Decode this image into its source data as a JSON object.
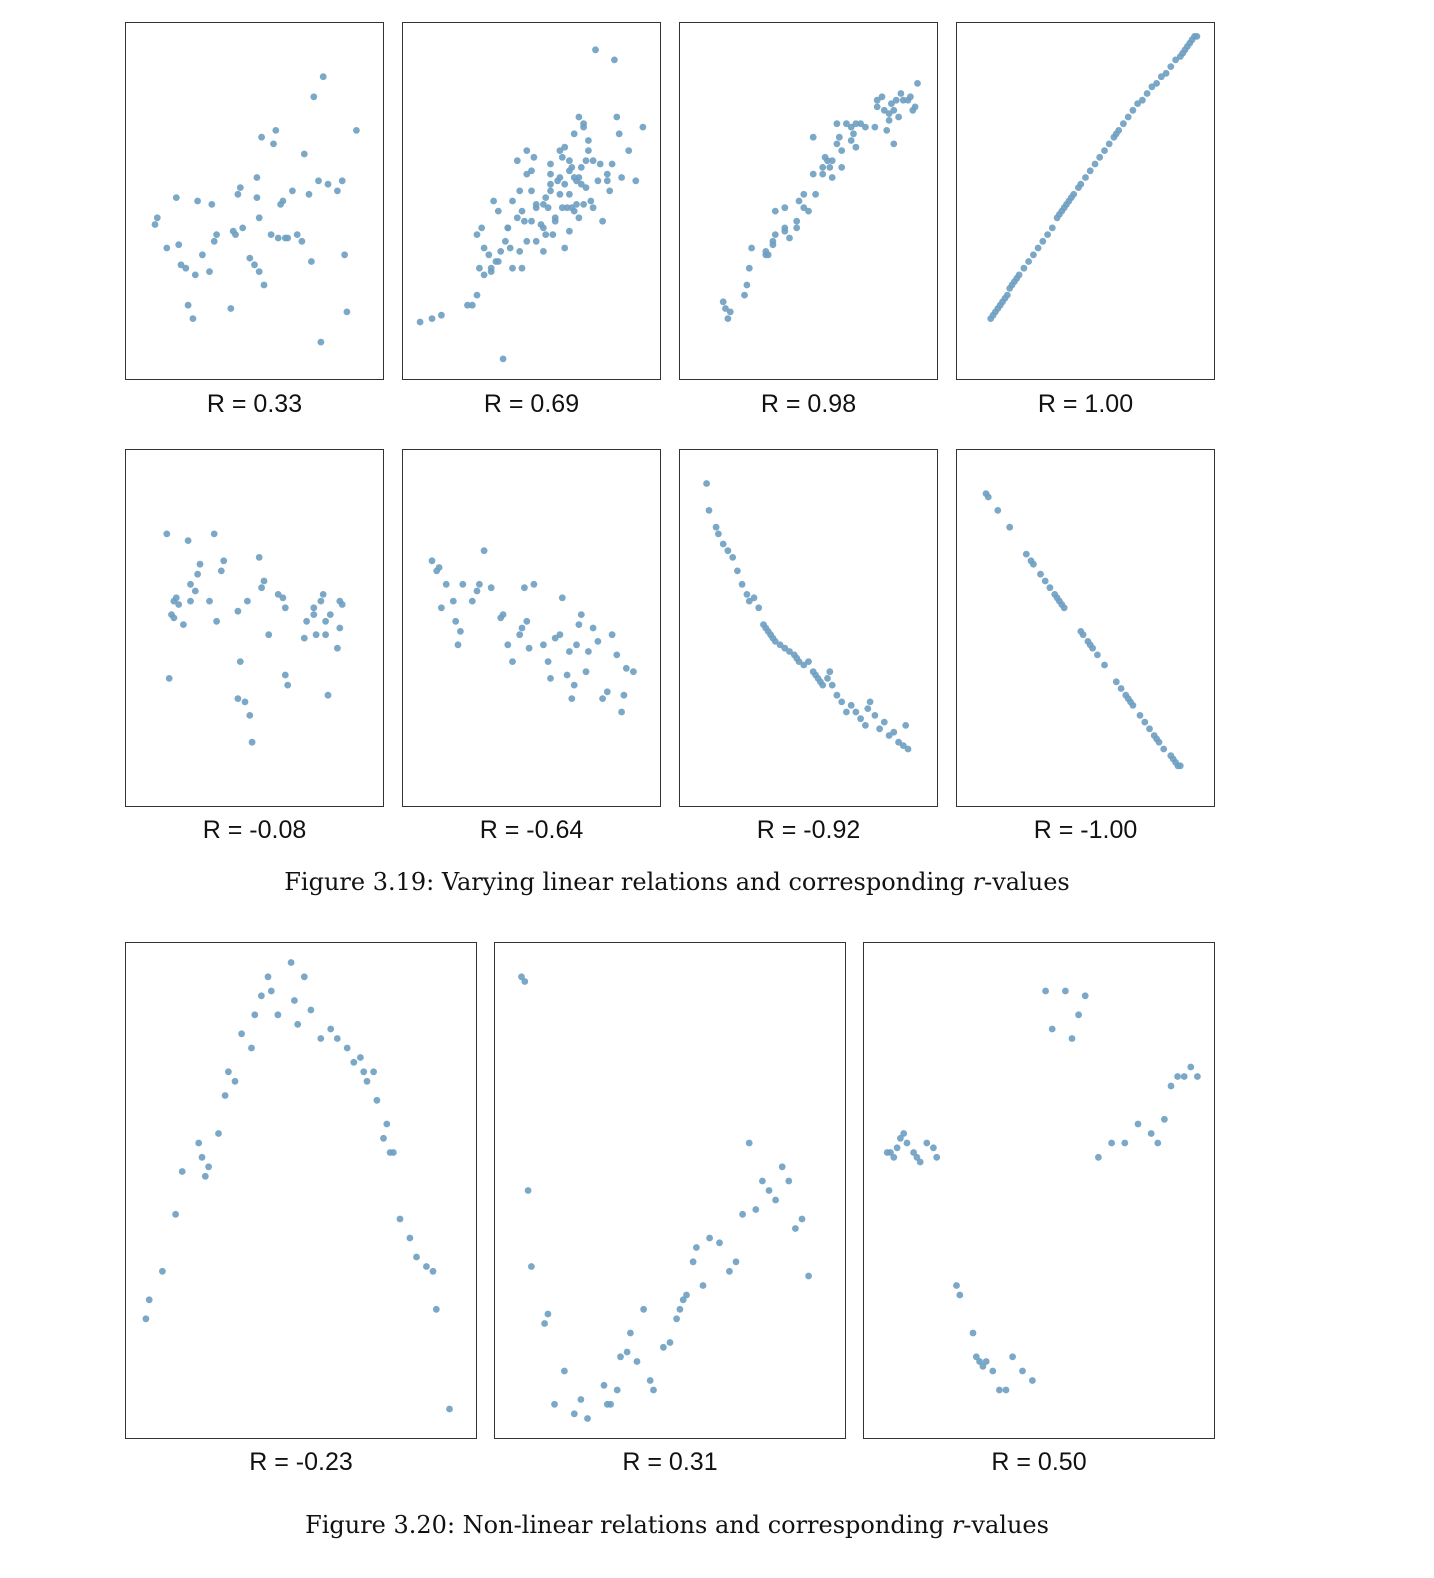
{
  "point_color": "#6e9fc2",
  "figure_319": {
    "caption_prefix": "Figure 3.19: Varying linear relations and corresponding ",
    "caption_var": "r",
    "caption_suffix": "-values"
  },
  "figure_320": {
    "caption_prefix": "Figure 3.20: Non-linear relations and corresponding ",
    "caption_var": "r",
    "caption_suffix": "-values"
  },
  "chart_data": [
    {
      "type": "scatter",
      "title": "R = 0.33",
      "xlim": [
        0,
        100
      ],
      "ylim": [
        0,
        100
      ],
      "x": [
        8,
        9,
        13,
        17,
        18,
        19,
        21,
        22,
        24,
        25,
        26,
        28,
        31,
        32,
        33,
        34,
        40,
        41,
        42,
        43,
        44,
        45,
        48,
        50,
        51,
        51,
        52,
        52,
        53,
        54,
        57,
        58,
        59,
        60,
        61,
        62,
        63,
        64,
        66,
        68,
        70,
        71,
        73,
        74,
        75,
        77,
        78,
        79,
        81,
        85,
        87,
        88,
        89,
        93
      ],
      "y": [
        43,
        45,
        36,
        51,
        37,
        31,
        30,
        19,
        15,
        28,
        50,
        34,
        29,
        49,
        38,
        40,
        18,
        41,
        40,
        52,
        54,
        42,
        33,
        31,
        51,
        57,
        45,
        29,
        69,
        25,
        40,
        67,
        71,
        39,
        49,
        50,
        39,
        39,
        53,
        40,
        38,
        64,
        52,
        32,
        81,
        56,
        8,
        87,
        55,
        53,
        56,
        34,
        17,
        71
      ]
    },
    {
      "type": "scatter",
      "title": "R = 0.69",
      "xlim": [
        0,
        100
      ],
      "ylim": [
        0,
        100
      ],
      "x": [
        3,
        8,
        12,
        23,
        25,
        27,
        29,
        30,
        32,
        33,
        36,
        38,
        39,
        40,
        41,
        42,
        44,
        46,
        47,
        48,
        50,
        51,
        52,
        54,
        55,
        55,
        56,
        57,
        58,
        58,
        59,
        60,
        61,
        62,
        63,
        63,
        64,
        64,
        65,
        66,
        66,
        67,
        68,
        68,
        69,
        69,
        70,
        70,
        71,
        71,
        72,
        72,
        73,
        73,
        74,
        74,
        75,
        76,
        76,
        78,
        79,
        80,
        82,
        82,
        83,
        84,
        86,
        87,
        88,
        91,
        94,
        97,
        35,
        40,
        42,
        44,
        46,
        48,
        52,
        56,
        58,
        60,
        62,
        64,
        66,
        67,
        70,
        72,
        30,
        33,
        37,
        27,
        28,
        34,
        36,
        45,
        50,
        58,
        62,
        66,
        68,
        50,
        52,
        55,
        45,
        48,
        77,
        85
      ],
      "y": [
        14,
        15,
        16,
        19,
        19,
        40,
        42,
        36,
        34,
        29,
        32,
        3,
        38,
        42,
        36,
        30,
        45,
        30,
        44,
        38,
        44,
        63,
        49,
        43,
        49,
        42,
        51,
        48,
        61,
        53,
        40,
        45,
        56,
        57,
        48,
        63,
        55,
        36,
        48,
        52,
        41,
        60,
        57,
        47,
        56,
        49,
        57,
        45,
        60,
        55,
        72,
        49,
        54,
        62,
        65,
        68,
        50,
        48,
        62,
        56,
        61,
        44,
        56,
        58,
        53,
        61,
        75,
        70,
        57,
        65,
        56,
        72,
        32,
        42,
        50,
        62,
        47,
        65,
        48,
        40,
        58,
        44,
        52,
        66,
        59,
        48,
        75,
        73,
        28,
        30,
        35,
        22,
        30,
        50,
        47,
        35,
        59,
        55,
        65,
        62,
        70,
        53,
        38,
        35,
        53,
        58,
        95,
        92
      ]
    },
    {
      "type": "scatter",
      "title": "R = 0.98",
      "xlim": [
        0,
        100
      ],
      "ylim": [
        0,
        100
      ],
      "x": [
        14,
        15,
        16,
        17,
        23,
        24,
        25,
        26,
        32,
        32,
        33,
        35,
        35,
        36,
        40,
        40,
        42,
        45,
        45,
        46,
        48,
        50,
        52,
        53,
        56,
        57,
        58,
        59,
        60,
        60,
        62,
        63,
        64,
        64,
        68,
        68,
        69,
        70,
        72,
        74,
        78,
        79,
        79,
        81,
        82,
        83,
        84,
        84,
        85,
        86,
        86,
        87,
        88,
        89,
        90,
        92,
        93,
        94,
        95,
        96,
        70,
        56,
        62,
        66,
        52,
        48,
        40,
        36
      ],
      "y": [
        20,
        18,
        15,
        17,
        22,
        25,
        30,
        36,
        34,
        35,
        34,
        38,
        37,
        40,
        41,
        42,
        39,
        44,
        42,
        50,
        48,
        47,
        58,
        52,
        58,
        63,
        62,
        60,
        57,
        62,
        67,
        69,
        65,
        60,
        68,
        72,
        70,
        66,
        73,
        72,
        72,
        78,
        80,
        81,
        77,
        71,
        76,
        74,
        79,
        77,
        67,
        80,
        75,
        82,
        80,
        80,
        81,
        77,
        78,
        85,
        73,
        60,
        73,
        73,
        69,
        52,
        48,
        47
      ]
    },
    {
      "type": "scatter",
      "title": "R = 1.00",
      "xlim": [
        0,
        100
      ],
      "ylim": [
        0,
        100
      ],
      "x": [
        10,
        11,
        12,
        13,
        14,
        15,
        16,
        17,
        18,
        19,
        20,
        21,
        22,
        24,
        26,
        28,
        30,
        32,
        34,
        36,
        38,
        39,
        40,
        41,
        42,
        43,
        44,
        45,
        47,
        48,
        50,
        52,
        54,
        56,
        58,
        60,
        62,
        63,
        64,
        66,
        68,
        70,
        72,
        74,
        76,
        78,
        80,
        82,
        84,
        86,
        88,
        90,
        91,
        92,
        93,
        94,
        95,
        96,
        97
      ],
      "y": [
        15,
        16,
        17,
        18,
        19,
        20,
        21,
        22,
        24,
        25,
        26,
        27,
        28,
        30,
        32,
        34,
        36,
        38,
        40,
        42,
        45,
        46,
        47,
        48,
        49,
        50,
        51,
        52,
        54,
        55,
        57,
        59,
        61,
        63,
        65,
        67,
        69,
        70,
        71,
        73,
        75,
        77,
        79,
        80,
        82,
        84,
        85,
        87,
        88,
        90,
        92,
        93,
        94,
        95,
        96,
        97,
        98,
        99,
        99
      ]
    },
    {
      "type": "scatter",
      "title": "R = -0.08",
      "xlim": [
        0,
        100
      ],
      "ylim": [
        0,
        100
      ],
      "x": [
        13,
        14,
        15,
        16,
        16,
        17,
        18,
        20,
        22,
        23,
        23,
        25,
        26,
        27,
        31,
        33,
        34,
        36,
        37,
        43,
        43,
        44,
        46,
        47,
        48,
        49,
        52,
        53,
        54,
        56,
        60,
        62,
        63,
        63,
        64,
        71,
        72,
        75,
        75,
        76,
        78,
        79,
        80,
        80,
        81,
        82,
        85,
        86,
        86,
        87
      ],
      "y": [
        78,
        35,
        54,
        53,
        58,
        59,
        57,
        51,
        76,
        58,
        63,
        61,
        66,
        69,
        58,
        78,
        52,
        67,
        70,
        55,
        29,
        40,
        28,
        58,
        24,
        16,
        71,
        62,
        64,
        48,
        60,
        59,
        56,
        36,
        33,
        47,
        52,
        56,
        54,
        48,
        58,
        60,
        48,
        52,
        30,
        54,
        44,
        50,
        58,
        57
      ]
    },
    {
      "type": "scatter",
      "title": "R = -0.64",
      "xlim": [
        0,
        100
      ],
      "ylim": [
        0,
        100
      ],
      "x": [
        8,
        10,
        11,
        12,
        14,
        17,
        18,
        19,
        20,
        21,
        25,
        27,
        28,
        30,
        33,
        37,
        38,
        40,
        42,
        45,
        46,
        47,
        48,
        49,
        51,
        55,
        57,
        58,
        60,
        62,
        63,
        65,
        66,
        67,
        68,
        69,
        70,
        71,
        73,
        74,
        76,
        78,
        80,
        82,
        84,
        86,
        88,
        89,
        90,
        93
      ],
      "y": [
        70,
        67,
        68,
        56,
        63,
        58,
        52,
        45,
        49,
        63,
        58,
        61,
        63,
        73,
        62,
        53,
        54,
        45,
        40,
        48,
        50,
        62,
        52,
        44,
        63,
        45,
        40,
        35,
        47,
        48,
        59,
        36,
        43,
        29,
        33,
        45,
        51,
        54,
        37,
        43,
        50,
        46,
        29,
        31,
        48,
        42,
        25,
        30,
        38,
        37
      ]
    },
    {
      "type": "scatter",
      "title": "R = -0.92",
      "xlim": [
        0,
        100
      ],
      "ylim": [
        0,
        100
      ],
      "x": [
        7,
        8,
        11,
        12,
        14,
        16,
        18,
        20,
        22,
        24,
        25,
        27,
        29,
        31,
        32,
        33,
        34,
        35,
        36,
        38,
        40,
        42,
        44,
        45,
        46,
        48,
        50,
        52,
        53,
        54,
        55,
        56,
        58,
        59,
        60,
        62,
        64,
        66,
        68,
        70,
        72,
        74,
        75,
        76,
        78,
        80,
        82,
        84,
        86,
        88,
        90,
        91,
        92
      ],
      "y": [
        93,
        85,
        80,
        78,
        75,
        73,
        71,
        67,
        63,
        60,
        58,
        59,
        56,
        51,
        50,
        49,
        48,
        47,
        46,
        45,
        44,
        43,
        42,
        41,
        40,
        39,
        40,
        37,
        36,
        35,
        34,
        33,
        35,
        37,
        33,
        30,
        28,
        25,
        27,
        25,
        23,
        21,
        26,
        28,
        24,
        20,
        22,
        18,
        19,
        16,
        15,
        21,
        14
      ]
    },
    {
      "type": "scatter",
      "title": "R = -1.00",
      "xlim": [
        0,
        100
      ],
      "ylim": [
        0,
        100
      ],
      "x": [
        8,
        9,
        13,
        18,
        25,
        27,
        28,
        31,
        33,
        35,
        37,
        38,
        39,
        40,
        41,
        48,
        49,
        51,
        52,
        53,
        55,
        58,
        63,
        65,
        67,
        68,
        69,
        70,
        73,
        75,
        77,
        79,
        80,
        81,
        83,
        86,
        87,
        88,
        89,
        90
      ],
      "y": [
        90,
        89,
        85,
        80,
        72,
        70,
        69,
        66,
        64,
        62,
        60,
        59,
        58,
        57,
        56,
        49,
        48,
        46,
        45,
        44,
        42,
        39,
        34,
        32,
        30,
        29,
        28,
        27,
        24,
        22,
        20,
        18,
        17,
        16,
        14,
        12,
        11,
        10,
        9,
        9
      ]
    },
    {
      "type": "scatter",
      "title": "R = -0.23",
      "xlim": [
        0,
        100
      ],
      "ylim": [
        0,
        100
      ],
      "x": [
        3,
        4,
        8,
        12,
        14,
        19,
        20,
        21,
        22,
        25,
        27,
        28,
        30,
        32,
        35,
        36,
        38,
        40,
        41,
        43,
        47,
        48,
        49,
        51,
        53,
        56,
        59,
        61,
        64,
        66,
        68,
        69,
        70,
        72,
        73,
        75,
        76,
        77,
        78,
        80,
        83,
        85,
        88,
        90,
        91,
        95
      ],
      "y": [
        23,
        27,
        33,
        45,
        54,
        60,
        57,
        53,
        55,
        62,
        70,
        75,
        73,
        83,
        80,
        87,
        91,
        95,
        92,
        87,
        98,
        90,
        85,
        95,
        88,
        82,
        84,
        82,
        80,
        77,
        78,
        75,
        73,
        75,
        69,
        61,
        64,
        58,
        58,
        44,
        40,
        36,
        34,
        33,
        25,
        4
      ]
    },
    {
      "type": "scatter",
      "title": "R = 0.31",
      "xlim": [
        0,
        100
      ],
      "ylim": [
        0,
        100
      ],
      "x": [
        5,
        6,
        7,
        8,
        12,
        13,
        15,
        18,
        21,
        23,
        25,
        30,
        31,
        32,
        34,
        35,
        37,
        38,
        40,
        42,
        44,
        45,
        48,
        50,
        52,
        53,
        54,
        55,
        57,
        58,
        60,
        62,
        65,
        68,
        70,
        72,
        74,
        76,
        78,
        80,
        82,
        84,
        86,
        88,
        90,
        92
      ],
      "y": [
        95,
        94,
        50,
        34,
        22,
        24,
        5,
        12,
        3,
        6,
        2,
        9,
        5,
        5,
        8,
        15,
        16,
        20,
        14,
        25,
        10,
        8,
        17,
        18,
        23,
        25,
        27,
        28,
        35,
        38,
        30,
        40,
        39,
        33,
        35,
        45,
        60,
        46,
        52,
        50,
        48,
        55,
        52,
        42,
        44,
        32
      ]
    },
    {
      "type": "scatter",
      "title": "R = 0.50",
      "xlim": [
        0,
        100
      ],
      "ylim": [
        0,
        100
      ],
      "x": [
        4,
        5,
        6,
        7,
        8,
        9,
        10,
        12,
        13,
        14,
        16,
        18,
        19,
        25,
        26,
        30,
        31,
        32,
        33,
        34,
        36,
        38,
        40,
        42,
        45,
        48,
        52,
        54,
        58,
        60,
        62,
        64,
        68,
        72,
        76,
        80,
        84,
        86,
        88,
        90,
        92,
        94,
        96,
        98
      ],
      "y": [
        58,
        58,
        57,
        59,
        61,
        62,
        60,
        58,
        57,
        56,
        60,
        59,
        57,
        30,
        28,
        20,
        15,
        14,
        13,
        14,
        12,
        8,
        8,
        15,
        12,
        10,
        92,
        84,
        92,
        82,
        87,
        91,
        57,
        60,
        60,
        64,
        62,
        60,
        65,
        72,
        74,
        74,
        76,
        74
      ]
    }
  ]
}
